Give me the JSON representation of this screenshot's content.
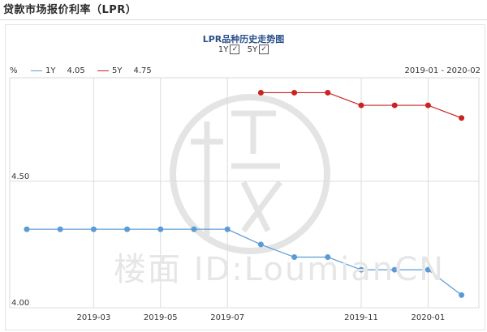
{
  "page": {
    "heading": "贷款市场报价利率（LPR）"
  },
  "watermark": {
    "text": "楼面 ID:LoumianCN"
  },
  "legend": {
    "unit": "%",
    "date_range": "2019-01 - 2020-02",
    "items": [
      {
        "name": "1Y",
        "value": "4.05",
        "color": "#5b9bd5"
      },
      {
        "name": "5Y",
        "value": "4.75",
        "color": "#cc2222"
      }
    ]
  },
  "toggles": [
    {
      "label": "1Y",
      "checked": true,
      "mark": "✓"
    },
    {
      "label": "5Y",
      "checked": true,
      "mark": "✓"
    }
  ],
  "chart_data": {
    "type": "line",
    "title": "LPR品种历史走势图",
    "xlabel": "",
    "ylabel": "%",
    "x": [
      "2019-01",
      "2019-02",
      "2019-03",
      "2019-04",
      "2019-05",
      "2019-06",
      "2019-07",
      "2019-08",
      "2019-09",
      "2019-10",
      "2019-11",
      "2019-12",
      "2020-01",
      "2020-02"
    ],
    "x_tick_labels": [
      "2019-03",
      "2019-05",
      "2019-07",
      "2019-11",
      "2020-01"
    ],
    "y_tick_labels": [
      "4.00",
      "4.50"
    ],
    "ylim": [
      4.0,
      4.9
    ],
    "grid": true,
    "series": [
      {
        "name": "1Y",
        "color": "#5b9bd5",
        "values": [
          4.31,
          4.31,
          4.31,
          4.31,
          4.31,
          4.31,
          4.31,
          4.25,
          4.2,
          4.2,
          4.15,
          4.15,
          4.15,
          4.05
        ]
      },
      {
        "name": "5Y",
        "color": "#cc2222",
        "values": [
          null,
          null,
          null,
          null,
          null,
          null,
          null,
          4.85,
          4.85,
          4.85,
          4.8,
          4.8,
          4.8,
          4.75
        ]
      }
    ]
  }
}
